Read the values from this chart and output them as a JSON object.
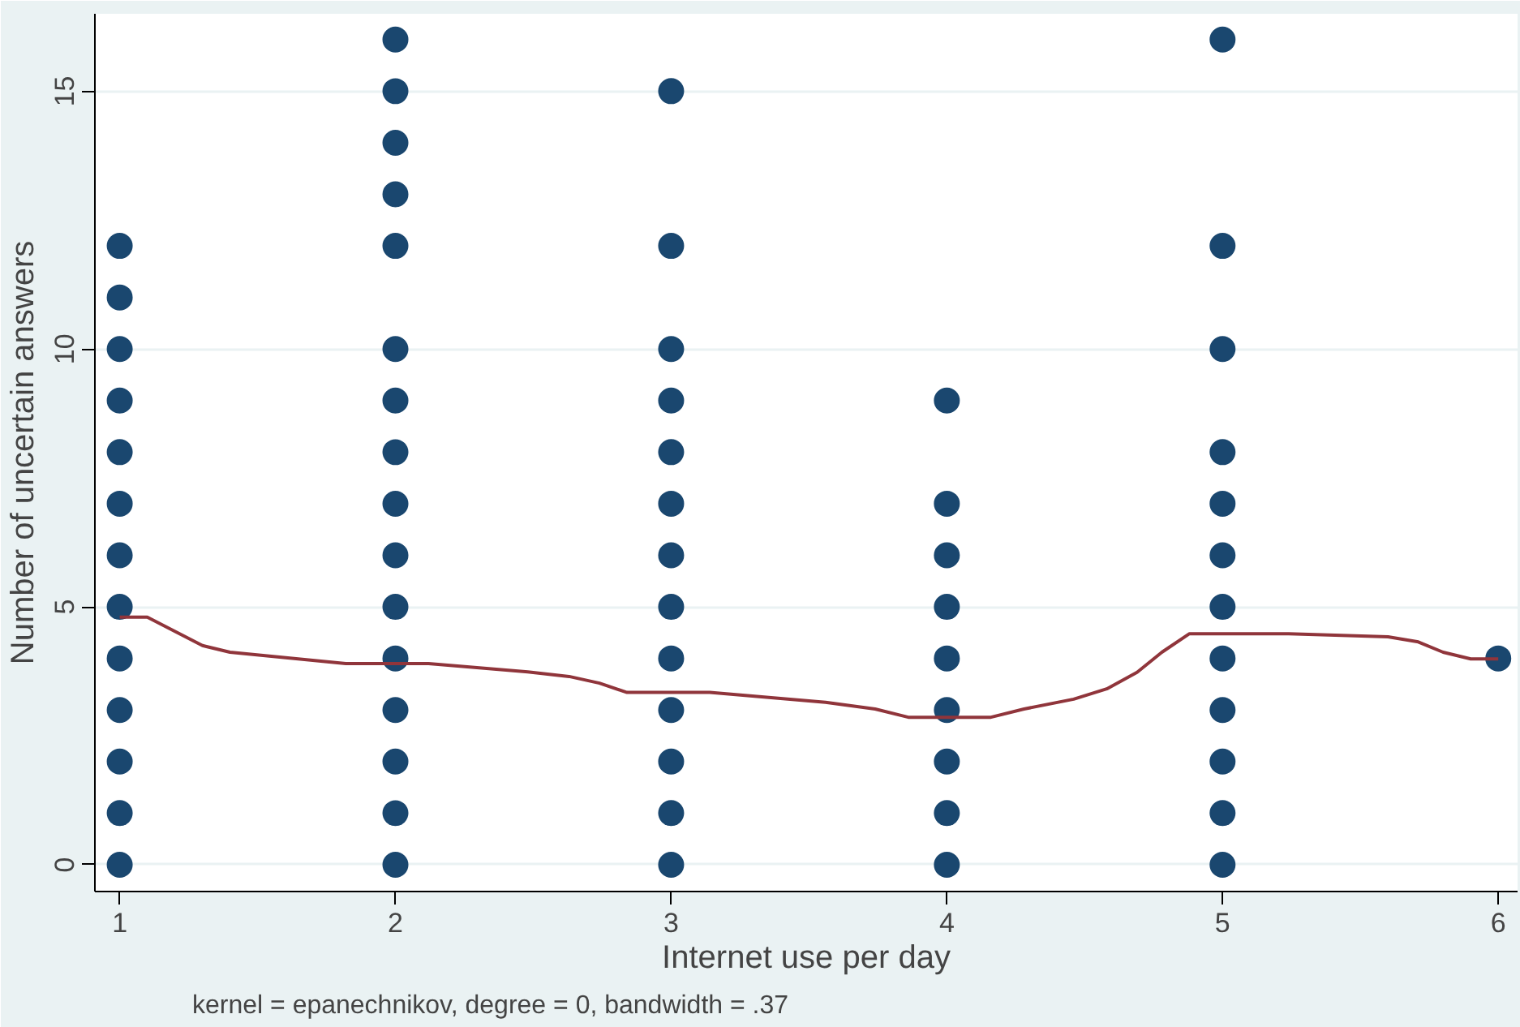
{
  "chart_data": {
    "type": "scatter",
    "xlabel": "Internet use per day",
    "ylabel": "Number of uncertain answers",
    "xlim": [
      0.91,
      6.07
    ],
    "ylim": [
      -0.52,
      16.5
    ],
    "xticks": [
      1,
      2,
      3,
      4,
      5,
      6
    ],
    "yticks": [
      0,
      5,
      10,
      15
    ],
    "grid": "y",
    "annotations": [
      "kernel = epanechnikov, degree = 0, bandwidth = .37"
    ],
    "series": [
      {
        "color": "#1a476f",
        "marker": "circle",
        "x": [
          1,
          1,
          1,
          1,
          1,
          1,
          1,
          1,
          1,
          1,
          1,
          1,
          1,
          2,
          2,
          2,
          2,
          2,
          2,
          2,
          2,
          2,
          2,
          2,
          2,
          2,
          2,
          2,
          2,
          3,
          3,
          3,
          3,
          3,
          3,
          3,
          3,
          3,
          3,
          3,
          3,
          3,
          4,
          4,
          4,
          4,
          4,
          4,
          4,
          4,
          4,
          5,
          5,
          5,
          5,
          5,
          5,
          5,
          5,
          5,
          5,
          5,
          5,
          6
        ],
        "values": [
          0,
          1,
          2,
          3,
          4,
          5,
          6,
          7,
          8,
          9,
          10,
          11,
          12,
          0,
          1,
          2,
          3,
          4,
          5,
          6,
          7,
          8,
          9,
          10,
          12,
          13,
          14,
          15,
          16,
          0,
          1,
          2,
          3,
          4,
          5,
          6,
          7,
          8,
          9,
          10,
          12,
          15,
          0,
          1,
          2,
          3,
          4,
          5,
          6,
          7,
          9,
          0,
          1,
          2,
          3,
          4,
          5,
          6,
          7,
          8,
          10,
          12,
          16,
          4
        ]
      },
      {
        "type": "line",
        "color": "#90353b",
        "x": [
          1.0,
          1.1,
          1.3,
          1.4,
          1.82,
          2.12,
          2.48,
          2.63,
          2.74,
          2.84,
          3.14,
          3.56,
          3.74,
          3.86,
          4.16,
          4.28,
          4.46,
          4.58,
          4.69,
          4.78,
          4.88,
          5.24,
          5.6,
          5.71,
          5.8,
          5.9,
          6.0
        ],
        "values": [
          4.8,
          4.8,
          4.25,
          4.12,
          3.9,
          3.9,
          3.74,
          3.65,
          3.52,
          3.34,
          3.34,
          3.15,
          3.02,
          2.86,
          2.86,
          3.02,
          3.21,
          3.41,
          3.73,
          4.12,
          4.48,
          4.48,
          4.42,
          4.32,
          4.12,
          3.99,
          3.99
        ]
      }
    ]
  }
}
